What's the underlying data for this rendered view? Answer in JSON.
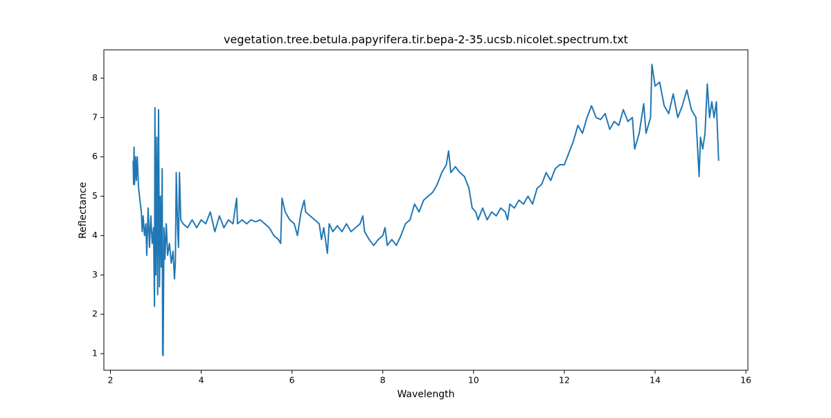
{
  "chart_data": {
    "type": "line",
    "title": "vegetation.tree.betula.papyrifera.tir.bepa-2-35.ucsb.nicolet.spectrum.txt",
    "xlabel": "Wavelength",
    "ylabel": "Reflectance",
    "xlim": [
      1.855,
      16.045
    ],
    "ylim": [
      0.578,
      8.72
    ],
    "xticks": [
      2,
      4,
      6,
      8,
      10,
      12,
      14,
      16
    ],
    "yticks": [
      1,
      2,
      3,
      4,
      5,
      6,
      7,
      8
    ],
    "grid": false,
    "series": [
      {
        "color": "#1f77b4",
        "x": [
          2.5,
          2.51,
          2.52,
          2.53,
          2.55,
          2.57,
          2.59,
          2.62,
          2.65,
          2.68,
          2.7,
          2.72,
          2.75,
          2.78,
          2.8,
          2.83,
          2.86,
          2.89,
          2.92,
          2.95,
          2.97,
          2.98,
          3.0,
          3.02,
          3.04,
          3.06,
          3.08,
          3.1,
          3.12,
          3.14,
          3.15,
          3.16,
          3.18,
          3.2,
          3.23,
          3.26,
          3.3,
          3.34,
          3.38,
          3.41,
          3.43,
          3.45,
          3.48,
          3.5,
          3.52,
          3.55,
          3.6,
          3.7,
          3.8,
          3.9,
          4.0,
          4.1,
          4.2,
          4.3,
          4.4,
          4.5,
          4.6,
          4.7,
          4.78,
          4.8,
          4.9,
          5.0,
          5.1,
          5.2,
          5.3,
          5.4,
          5.5,
          5.6,
          5.7,
          5.75,
          5.78,
          5.85,
          5.95,
          6.05,
          6.12,
          6.2,
          6.27,
          6.3,
          6.4,
          6.5,
          6.6,
          6.65,
          6.7,
          6.78,
          6.82,
          6.9,
          7.0,
          7.1,
          7.2,
          7.3,
          7.4,
          7.5,
          7.56,
          7.6,
          7.7,
          7.8,
          7.9,
          8.0,
          8.05,
          8.1,
          8.2,
          8.3,
          8.4,
          8.5,
          8.6,
          8.7,
          8.8,
          8.9,
          9.0,
          9.1,
          9.2,
          9.3,
          9.4,
          9.45,
          9.5,
          9.6,
          9.7,
          9.8,
          9.9,
          9.97,
          10.05,
          10.1,
          10.2,
          10.3,
          10.4,
          10.5,
          10.6,
          10.7,
          10.75,
          10.8,
          10.9,
          11.0,
          11.1,
          11.2,
          11.3,
          11.4,
          11.5,
          11.6,
          11.7,
          11.8,
          11.9,
          12.0,
          12.1,
          12.2,
          12.3,
          12.4,
          12.5,
          12.6,
          12.7,
          12.8,
          12.9,
          13.0,
          13.1,
          13.2,
          13.3,
          13.4,
          13.5,
          13.55,
          13.65,
          13.75,
          13.8,
          13.9,
          13.93,
          14.0,
          14.1,
          14.2,
          14.3,
          14.4,
          14.5,
          14.6,
          14.7,
          14.8,
          14.9,
          14.97,
          15.0,
          15.05,
          15.1,
          15.15,
          15.2,
          15.25,
          15.3,
          15.35,
          15.4
        ],
        "values": [
          5.9,
          5.3,
          6.25,
          5.3,
          6.0,
          5.4,
          6.0,
          5.2,
          4.9,
          4.6,
          4.1,
          4.5,
          4.0,
          4.3,
          3.5,
          4.7,
          3.7,
          4.5,
          3.8,
          4.2,
          2.2,
          7.25,
          3.0,
          6.5,
          2.5,
          7.2,
          2.7,
          5.0,
          3.2,
          5.7,
          1.0,
          0.95,
          4.2,
          3.4,
          4.3,
          3.5,
          3.8,
          3.3,
          3.6,
          2.9,
          3.3,
          5.6,
          4.2,
          3.7,
          5.6,
          4.4,
          4.3,
          4.2,
          4.4,
          4.2,
          4.4,
          4.3,
          4.6,
          4.1,
          4.5,
          4.2,
          4.4,
          4.3,
          4.95,
          4.3,
          4.4,
          4.3,
          4.4,
          4.35,
          4.4,
          4.3,
          4.2,
          4.0,
          3.9,
          3.8,
          4.95,
          4.6,
          4.4,
          4.3,
          4.0,
          4.6,
          4.9,
          4.6,
          4.5,
          4.4,
          4.3,
          3.9,
          4.2,
          3.55,
          4.3,
          4.1,
          4.25,
          4.1,
          4.3,
          4.1,
          4.2,
          4.3,
          4.5,
          4.1,
          3.9,
          3.75,
          3.9,
          4.0,
          4.2,
          3.75,
          3.9,
          3.75,
          4.0,
          4.3,
          4.4,
          4.8,
          4.6,
          4.9,
          5.0,
          5.1,
          5.3,
          5.6,
          5.8,
          6.15,
          5.6,
          5.75,
          5.6,
          5.5,
          5.2,
          4.7,
          4.6,
          4.4,
          4.7,
          4.4,
          4.6,
          4.5,
          4.7,
          4.6,
          4.4,
          4.8,
          4.7,
          4.9,
          4.8,
          5.0,
          4.8,
          5.2,
          5.3,
          5.6,
          5.4,
          5.7,
          5.8,
          5.8,
          6.1,
          6.4,
          6.8,
          6.6,
          7.0,
          7.3,
          7.0,
          6.95,
          7.1,
          6.7,
          6.9,
          6.8,
          7.2,
          6.9,
          7.0,
          6.2,
          6.6,
          7.35,
          6.6,
          7.0,
          8.35,
          7.8,
          7.9,
          7.3,
          7.1,
          7.6,
          7.0,
          7.3,
          7.7,
          7.2,
          7.0,
          5.5,
          6.5,
          6.2,
          6.6,
          7.85,
          7.0,
          7.4,
          7.0,
          7.4,
          5.9
        ]
      }
    ]
  }
}
